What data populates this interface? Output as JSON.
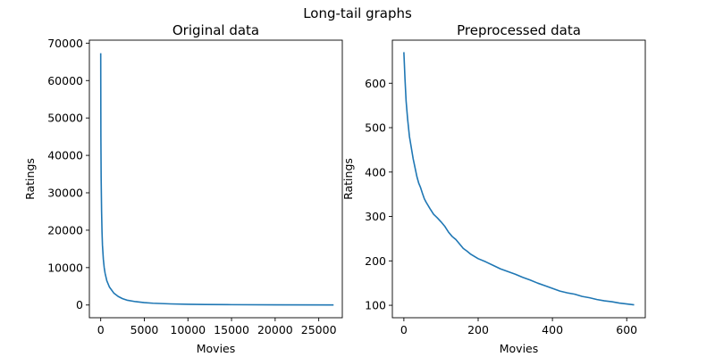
{
  "figure": {
    "suptitle": "Long-tail graphs"
  },
  "chart_data": [
    {
      "type": "line",
      "title": "Original data",
      "xlabel": "Movies",
      "ylabel": "Ratings",
      "xlim": [
        -1300,
        27700
      ],
      "ylim": [
        -3400,
        70800
      ],
      "xticks": [
        0,
        5000,
        10000,
        15000,
        20000,
        25000
      ],
      "xtick_labels": [
        "0",
        "5000",
        "10000",
        "15000",
        "20000",
        "25000"
      ],
      "yticks": [
        0,
        10000,
        20000,
        30000,
        40000,
        50000,
        60000,
        70000
      ],
      "ytick_labels": [
        "0",
        "10000",
        "20000",
        "30000",
        "40000",
        "50000",
        "60000",
        "70000"
      ],
      "color": "#1f77b4",
      "series": [
        {
          "x": [
            0,
            20,
            50,
            100,
            150,
            200,
            300,
            400,
            500,
            700,
            1000,
            1500,
            2000,
            2500,
            3000,
            4000,
            5000,
            6000,
            8000,
            10000,
            12000,
            15000,
            20000,
            26700
          ],
          "y": [
            67300,
            45000,
            34000,
            25000,
            19500,
            16000,
            12300,
            10000,
            8500,
            6500,
            4800,
            3200,
            2300,
            1700,
            1300,
            900,
            650,
            480,
            300,
            200,
            140,
            90,
            40,
            10
          ]
        }
      ]
    },
    {
      "type": "line",
      "title": "Preprocessed data",
      "xlabel": "Movies",
      "ylabel": "Ratings",
      "xlim": [
        -31,
        650
      ],
      "ylim": [
        72,
        697
      ],
      "xticks": [
        0,
        200,
        400,
        600
      ],
      "xtick_labels": [
        "0",
        "200",
        "400",
        "600"
      ],
      "yticks": [
        100,
        200,
        300,
        400,
        500,
        600
      ],
      "ytick_labels": [
        "100",
        "200",
        "300",
        "400",
        "500",
        "600"
      ],
      "color": "#1f77b4",
      "series": [
        {
          "x": [
            0,
            3,
            6,
            10,
            15,
            20,
            25,
            30,
            35,
            40,
            45,
            50,
            55,
            60,
            70,
            80,
            90,
            100,
            110,
            120,
            130,
            140,
            150,
            160,
            170,
            180,
            190,
            200,
            220,
            240,
            260,
            280,
            300,
            320,
            340,
            360,
            380,
            400,
            420,
            440,
            460,
            480,
            500,
            520,
            540,
            560,
            580,
            600,
            620
          ],
          "y": [
            670,
            610,
            560,
            520,
            480,
            455,
            430,
            410,
            390,
            375,
            365,
            352,
            340,
            332,
            318,
            305,
            297,
            288,
            278,
            265,
            255,
            248,
            238,
            228,
            222,
            215,
            210,
            205,
            198,
            190,
            182,
            176,
            170,
            163,
            157,
            150,
            144,
            138,
            132,
            128,
            125,
            120,
            117,
            113,
            110,
            108,
            105,
            103,
            101
          ]
        }
      ]
    }
  ]
}
